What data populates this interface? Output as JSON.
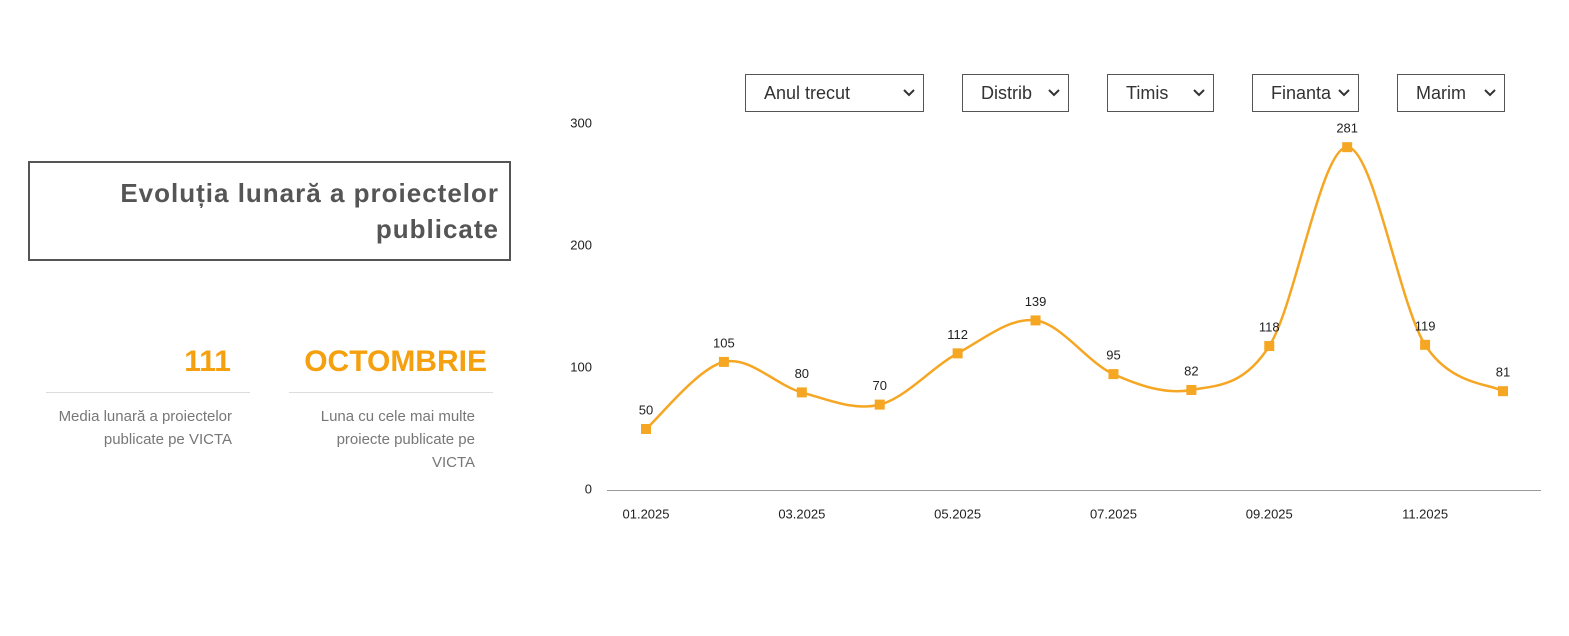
{
  "header": {
    "title": "Evoluția lunară a proiectelor publicate"
  },
  "stats": [
    {
      "value": 111,
      "label": "Media lunară a proiectelor publicate pe VICTA"
    },
    {
      "value": "OCTOMBRIE",
      "label": "Luna cu cele mai multe proiecte publicate pe VICTA"
    }
  ],
  "filters": [
    "Anul trecut",
    "Distrib",
    "Timis",
    "Finanta",
    "Marim"
  ],
  "chart_data": {
    "type": "line",
    "categories": [
      "01.2025",
      null,
      "03.2025",
      null,
      "05.2025",
      null,
      "07.2025",
      null,
      "09.2025",
      null,
      "11.2025",
      null
    ],
    "values": [
      50,
      105,
      80,
      70,
      112,
      139,
      95,
      82,
      118,
      281,
      119,
      81
    ],
    "color": "#f5a623",
    "ylim": [
      0,
      300
    ],
    "yticks": [
      0,
      100,
      200,
      300
    ],
    "grid": false
  }
}
